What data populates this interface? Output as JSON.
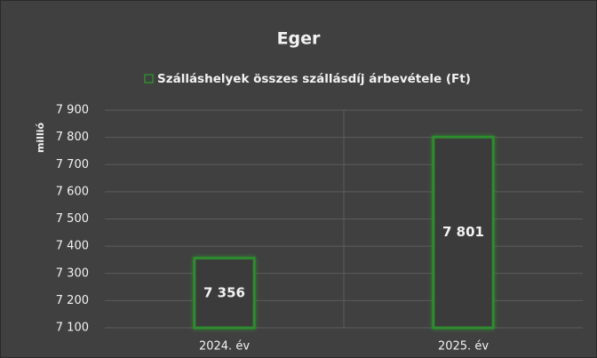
{
  "chart_data": {
    "type": "bar",
    "title": "Eger",
    "legend": "Szálláshelyek összes szállásdíj árbevétele (Ft)",
    "y_label": "millió",
    "categories": [
      "2024. év",
      "2025. év"
    ],
    "values": [
      7356,
      7801
    ],
    "value_labels": [
      "7 356",
      "7 801"
    ],
    "color": "#2e8b2e",
    "ylim": [
      7100,
      7900
    ],
    "yticks": [
      {
        "value": 7100,
        "label": "7 100"
      },
      {
        "value": 7200,
        "label": "7 200"
      },
      {
        "value": 7300,
        "label": "7 300"
      },
      {
        "value": 7400,
        "label": "7 400"
      },
      {
        "value": 7500,
        "label": "7 500"
      },
      {
        "value": 7600,
        "label": "7 600"
      },
      {
        "value": 7700,
        "label": "7 700"
      },
      {
        "value": 7800,
        "label": "7 800"
      },
      {
        "value": 7900,
        "label": "7 900"
      }
    ],
    "grid": true
  }
}
